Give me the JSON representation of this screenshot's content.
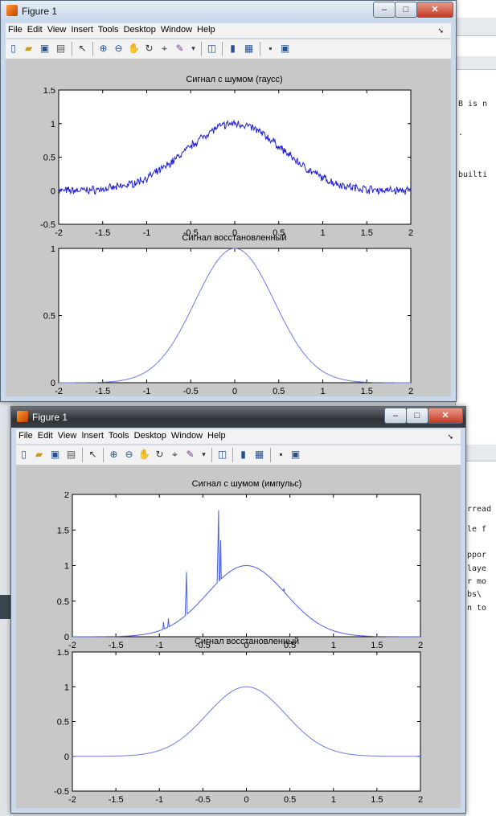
{
  "background": {
    "editor_top_lines": [
      "B is n",
      ".",
      "builti"
    ],
    "editor_bottom_lines": [
      "rread",
      "le f",
      "ppor",
      "laye",
      "r mo",
      "bs\\",
      "n to"
    ]
  },
  "windows": [
    {
      "title": "Figure 1",
      "menu": [
        "File",
        "Edit",
        "View",
        "Insert",
        "Tools",
        "Desktop",
        "Window",
        "Help"
      ],
      "plots": [
        {
          "title": "Сигнал с шумом (гаусс)",
          "chart_data": {
            "type": "line",
            "xlim": [
              -2,
              2
            ],
            "ylim": [
              -0.5,
              1.5
            ],
            "xticks": [
              "-2",
              "-1.5",
              "-1",
              "-0.5",
              "0",
              "0.5",
              "1",
              "1.5",
              "2"
            ],
            "yticks": [
              "-0.5",
              "0",
              "0.5",
              "1",
              "1.5"
            ],
            "series": [
              {
                "color": "#1f1fd6",
                "shape": "gaussian + gaussian noise",
                "sigma": 0.55,
                "noise_amp": 0.045,
                "seed": 7
              }
            ]
          }
        },
        {
          "title": "Сигнал восстановленный",
          "chart_data": {
            "type": "line",
            "xlim": [
              -2,
              2
            ],
            "ylim": [
              0,
              1
            ],
            "xticks": [
              "-2",
              "-1.5",
              "-1",
              "-0.5",
              "0",
              "0.5",
              "1",
              "1.5",
              "2"
            ],
            "yticks": [
              "0",
              "0.5",
              "1"
            ],
            "series": [
              {
                "color": "#6b7fe0",
                "shape": "gaussian",
                "sigma": 0.45
              }
            ]
          }
        }
      ]
    },
    {
      "title": "Figure 1",
      "menu": [
        "File",
        "Edit",
        "View",
        "Insert",
        "Tools",
        "Desktop",
        "Window",
        "Help"
      ],
      "plots": [
        {
          "title": "Сигнал с шумом (импульс)",
          "chart_data": {
            "type": "line",
            "xlim": [
              -2,
              2
            ],
            "ylim": [
              0,
              2
            ],
            "xticks": [
              "-2",
              "-1.5",
              "-1",
              "-0.5",
              "0",
              "0.5",
              "1",
              "1.5",
              "2"
            ],
            "yticks": [
              "0",
              "0.5",
              "1",
              "1.5",
              "2"
            ],
            "series": [
              {
                "color": "#4a5fe0",
                "shape": "gaussian + impulses",
                "sigma": 0.45,
                "impulses": [
                  [
                    -0.95,
                    0.1
                  ],
                  [
                    -0.9,
                    0.12
                  ],
                  [
                    -0.7,
                    0.3
                  ],
                  [
                    -0.69,
                    0.6
                  ],
                  [
                    -0.33,
                    0.45
                  ],
                  [
                    -0.32,
                    1.0
                  ],
                  [
                    -0.3,
                    0.55
                  ],
                  [
                    0.43,
                    0.05
                  ]
                ]
              }
            ]
          }
        },
        {
          "title": "Сигнал восстановленный",
          "chart_data": {
            "type": "line",
            "xlim": [
              -2,
              2
            ],
            "ylim": [
              -0.5,
              1.5
            ],
            "xticks": [
              "-2",
              "-1.5",
              "-1",
              "-0.5",
              "0",
              "0.5",
              "1",
              "1.5",
              "2"
            ],
            "yticks": [
              "-0.5",
              "0",
              "0.5",
              "1",
              "1.5"
            ],
            "series": [
              {
                "color": "#6b7fe0",
                "shape": "gaussian",
                "sigma": 0.45
              }
            ]
          }
        }
      ]
    }
  ]
}
